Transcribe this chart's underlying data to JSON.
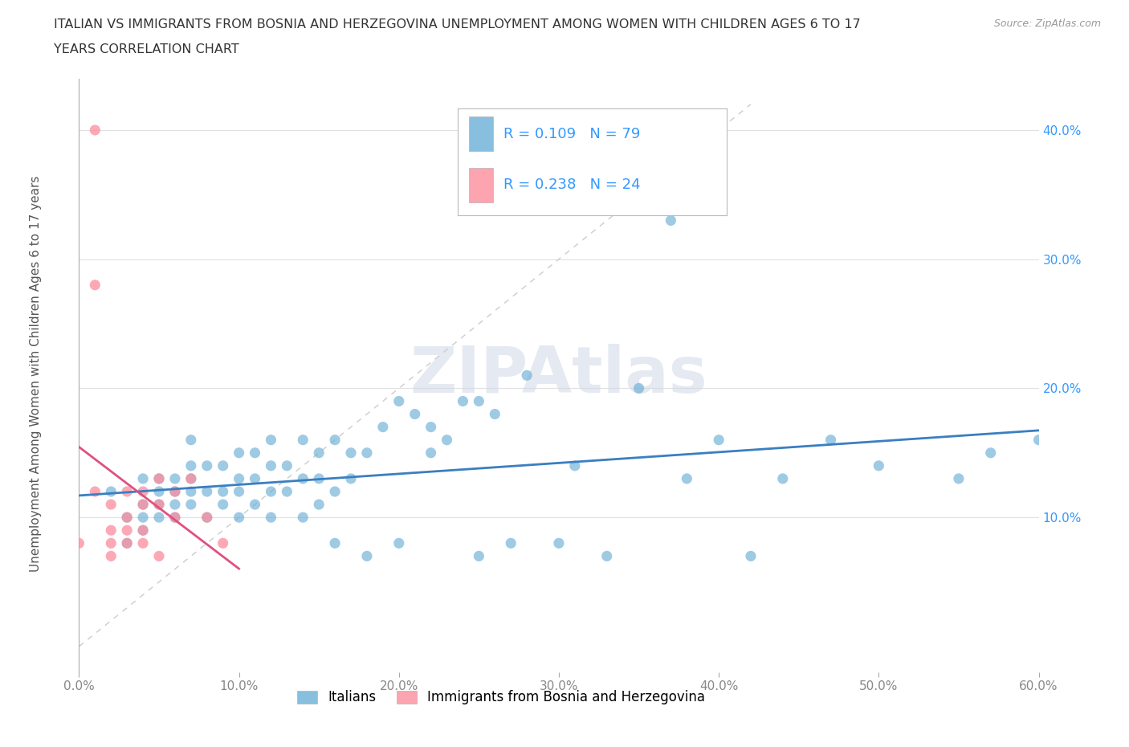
{
  "title_line1": "ITALIAN VS IMMIGRANTS FROM BOSNIA AND HERZEGOVINA UNEMPLOYMENT AMONG WOMEN WITH CHILDREN AGES 6 TO 17",
  "title_line2": "YEARS CORRELATION CHART",
  "source": "Source: ZipAtlas.com",
  "ylabel": "Unemployment Among Women with Children Ages 6 to 17 years",
  "xlim": [
    0.0,
    0.6
  ],
  "ylim": [
    -0.02,
    0.44
  ],
  "xticks": [
    0.0,
    0.1,
    0.2,
    0.3,
    0.4,
    0.5,
    0.6
  ],
  "yticks": [
    0.1,
    0.2,
    0.3,
    0.4
  ],
  "ytick_labels": [
    "10.0%",
    "20.0%",
    "30.0%",
    "40.0%"
  ],
  "xtick_labels": [
    "0.0%",
    "10.0%",
    "20.0%",
    "30.0%",
    "40.0%",
    "50.0%",
    "60.0%"
  ],
  "italian_color": "#6baed6",
  "bosnian_color": "#fc8d9c",
  "italian_line_color": "#3a7fc1",
  "bosnian_line_color": "#e05080",
  "italian_R": 0.109,
  "italian_N": 79,
  "bosnian_R": 0.238,
  "bosnian_N": 24,
  "legend_label_italian": "Italians",
  "legend_label_bosnian": "Immigrants from Bosnia and Herzegovina",
  "watermark": "ZIPAtlas",
  "background_color": "#ffffff",
  "grid_color": "#e0e0e0",
  "title_color": "#333333",
  "axis_label_color": "#555555",
  "tick_color": "#888888",
  "regression_text_color": "#3399ff",
  "italian_scatter_x": [
    0.02,
    0.03,
    0.03,
    0.04,
    0.04,
    0.04,
    0.04,
    0.05,
    0.05,
    0.05,
    0.05,
    0.06,
    0.06,
    0.06,
    0.06,
    0.07,
    0.07,
    0.07,
    0.07,
    0.07,
    0.08,
    0.08,
    0.08,
    0.09,
    0.09,
    0.09,
    0.1,
    0.1,
    0.1,
    0.1,
    0.11,
    0.11,
    0.11,
    0.12,
    0.12,
    0.12,
    0.12,
    0.13,
    0.13,
    0.14,
    0.14,
    0.14,
    0.15,
    0.15,
    0.15,
    0.16,
    0.16,
    0.16,
    0.17,
    0.17,
    0.18,
    0.18,
    0.19,
    0.2,
    0.2,
    0.21,
    0.22,
    0.22,
    0.23,
    0.24,
    0.25,
    0.25,
    0.26,
    0.27,
    0.28,
    0.3,
    0.31,
    0.33,
    0.35,
    0.37,
    0.38,
    0.4,
    0.42,
    0.44,
    0.47,
    0.5,
    0.55,
    0.57,
    0.6
  ],
  "italian_scatter_y": [
    0.12,
    0.08,
    0.1,
    0.09,
    0.1,
    0.11,
    0.13,
    0.1,
    0.11,
    0.12,
    0.13,
    0.1,
    0.11,
    0.12,
    0.13,
    0.11,
    0.12,
    0.13,
    0.14,
    0.16,
    0.1,
    0.12,
    0.14,
    0.11,
    0.12,
    0.14,
    0.1,
    0.12,
    0.13,
    0.15,
    0.11,
    0.13,
    0.15,
    0.1,
    0.12,
    0.14,
    0.16,
    0.12,
    0.14,
    0.1,
    0.13,
    0.16,
    0.11,
    0.13,
    0.15,
    0.08,
    0.12,
    0.16,
    0.13,
    0.15,
    0.07,
    0.15,
    0.17,
    0.08,
    0.19,
    0.18,
    0.15,
    0.17,
    0.16,
    0.19,
    0.07,
    0.19,
    0.18,
    0.08,
    0.21,
    0.08,
    0.14,
    0.07,
    0.2,
    0.33,
    0.13,
    0.16,
    0.07,
    0.13,
    0.16,
    0.14,
    0.13,
    0.15,
    0.16
  ],
  "bosnian_scatter_x": [
    0.0,
    0.01,
    0.01,
    0.01,
    0.02,
    0.02,
    0.02,
    0.02,
    0.03,
    0.03,
    0.03,
    0.03,
    0.04,
    0.04,
    0.04,
    0.04,
    0.05,
    0.05,
    0.05,
    0.06,
    0.06,
    0.07,
    0.08,
    0.09
  ],
  "bosnian_scatter_y": [
    0.08,
    0.4,
    0.28,
    0.12,
    0.11,
    0.09,
    0.08,
    0.07,
    0.12,
    0.1,
    0.09,
    0.08,
    0.12,
    0.11,
    0.09,
    0.08,
    0.13,
    0.11,
    0.07,
    0.12,
    0.1,
    0.13,
    0.1,
    0.08
  ]
}
